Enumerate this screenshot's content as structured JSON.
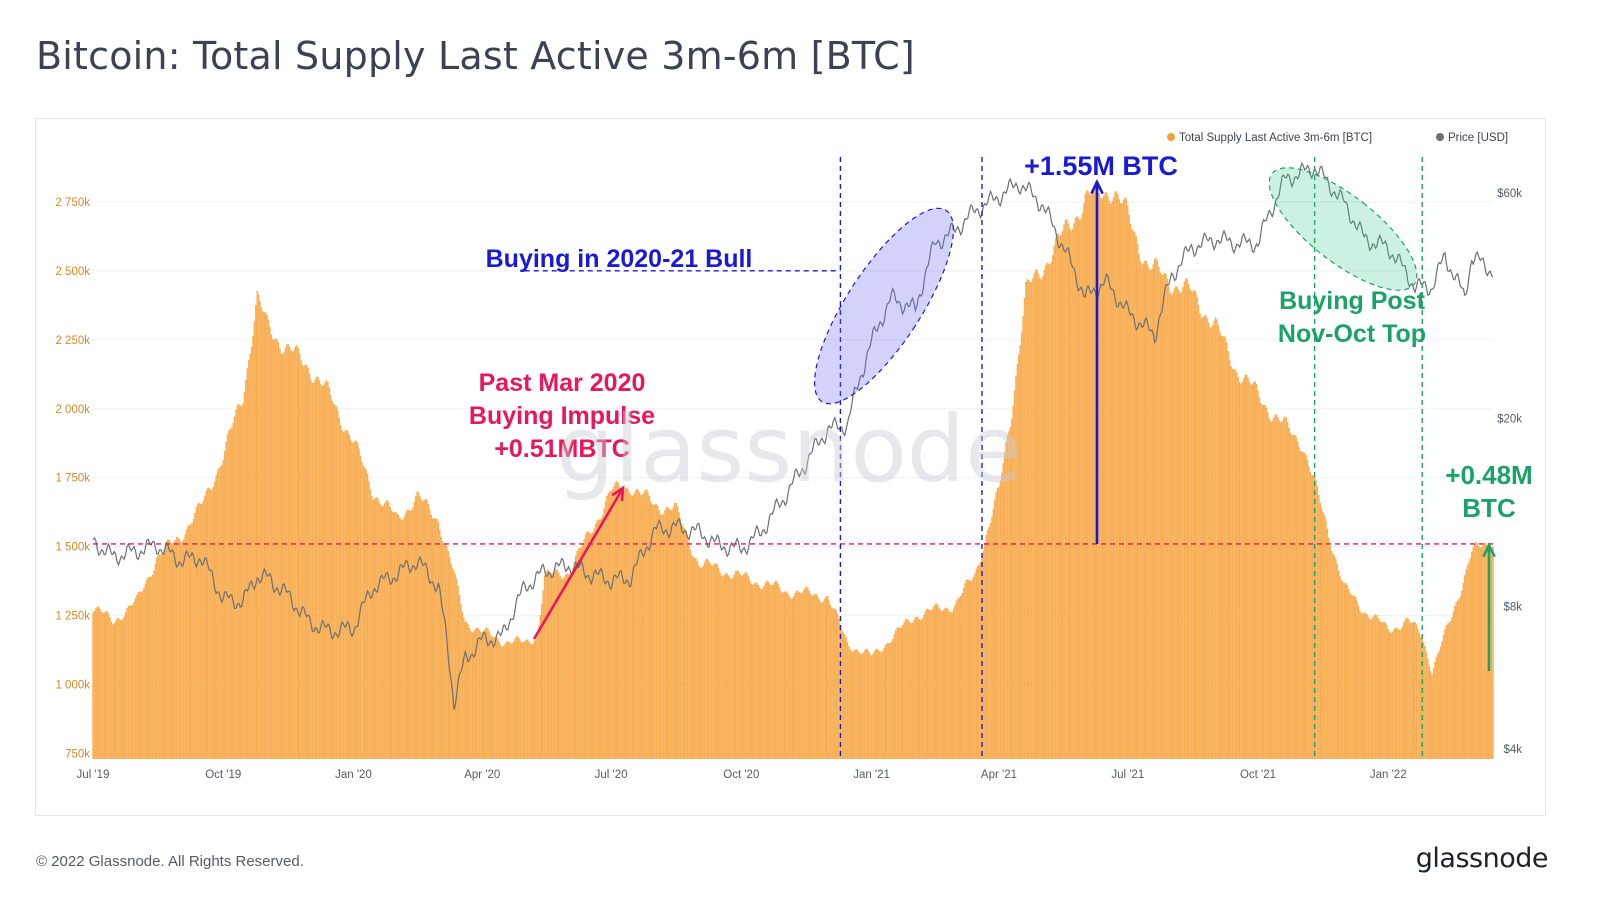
{
  "title": "Bitcoin: Total Supply Last Active 3m-6m [BTC]",
  "footer": {
    "copyright": "© 2022 Glassnode. All Rights Reserved.",
    "logo": "glassnode"
  },
  "watermark": "glassnode",
  "chart_data": {
    "type": "bar",
    "title": "Bitcoin: Total Supply Last Active 3m-6m [BTC]",
    "x_range": [
      "2019-07-01",
      "2022-03-16"
    ],
    "x_ticks": [
      "Jul '19",
      "Oct '19",
      "Jan '20",
      "Apr '20",
      "Jul '20",
      "Oct '20",
      "Jan '21",
      "Apr '21",
      "Jul '21",
      "Oct '21",
      "Jan '22"
    ],
    "y_left": {
      "ticks": [
        "750k",
        "1 000k",
        "1 250k",
        "1 500k",
        "1 750k",
        "2 000k",
        "2 250k",
        "2 500k",
        "2 750k"
      ],
      "ylim": [
        730000,
        2960000
      ],
      "color": "#f7a035"
    },
    "y_right": {
      "ticks": [
        "$4k",
        "$8k",
        "$20k",
        "$60k"
      ],
      "scale": "log",
      "color": "#555b66"
    },
    "legend": {
      "position": "top-right",
      "items": [
        {
          "label": "Total Supply Last Active 3m-6m [BTC]",
          "color": "#f7a035"
        },
        {
          "label": "Price [USD]",
          "color": "#6b6f76"
        }
      ]
    },
    "series": [
      {
        "name": "Total Supply Last Active 3m-6m [BTC]",
        "type": "bar",
        "axis": "left",
        "color": "#f7a035",
        "points": [
          [
            "2019-07-01",
            1280000
          ],
          [
            "2019-07-15",
            1230000
          ],
          [
            "2019-08-01",
            1300000
          ],
          [
            "2019-08-15",
            1460000
          ],
          [
            "2019-09-01",
            1540000
          ],
          [
            "2019-09-15",
            1640000
          ],
          [
            "2019-10-01",
            1830000
          ],
          [
            "2019-10-15",
            2050000
          ],
          [
            "2019-10-25",
            2400000
          ],
          [
            "2019-11-01",
            2300000
          ],
          [
            "2019-11-15",
            2220000
          ],
          [
            "2019-12-01",
            2150000
          ],
          [
            "2019-12-15",
            2050000
          ],
          [
            "2020-01-01",
            1880000
          ],
          [
            "2020-01-15",
            1700000
          ],
          [
            "2020-02-01",
            1600000
          ],
          [
            "2020-02-15",
            1680000
          ],
          [
            "2020-03-01",
            1600000
          ],
          [
            "2020-03-12",
            1400000
          ],
          [
            "2020-03-20",
            1230000
          ],
          [
            "2020-04-01",
            1190000
          ],
          [
            "2020-04-15",
            1160000
          ],
          [
            "2020-05-01",
            1150000
          ],
          [
            "2020-05-10",
            1180000
          ],
          [
            "2020-05-15",
            1390000
          ],
          [
            "2020-06-01",
            1410000
          ],
          [
            "2020-06-15",
            1540000
          ],
          [
            "2020-07-01",
            1700000
          ],
          [
            "2020-07-15",
            1720000
          ],
          [
            "2020-08-01",
            1650000
          ],
          [
            "2020-08-15",
            1640000
          ],
          [
            "2020-09-01",
            1440000
          ],
          [
            "2020-09-15",
            1420000
          ],
          [
            "2020-10-01",
            1390000
          ],
          [
            "2020-10-15",
            1370000
          ],
          [
            "2020-11-01",
            1340000
          ],
          [
            "2020-11-15",
            1330000
          ],
          [
            "2020-12-01",
            1320000
          ],
          [
            "2020-12-15",
            1150000
          ],
          [
            "2021-01-01",
            1100000
          ],
          [
            "2021-01-15",
            1170000
          ],
          [
            "2021-02-01",
            1250000
          ],
          [
            "2021-02-15",
            1270000
          ],
          [
            "2021-03-01",
            1290000
          ],
          [
            "2021-03-15",
            1400000
          ],
          [
            "2021-04-01",
            1700000
          ],
          [
            "2021-04-10",
            2000000
          ],
          [
            "2021-04-20",
            2420000
          ],
          [
            "2021-05-01",
            2510000
          ],
          [
            "2021-05-15",
            2620000
          ],
          [
            "2021-06-01",
            2760000
          ],
          [
            "2021-06-20",
            2800000
          ],
          [
            "2021-07-01",
            2700000
          ],
          [
            "2021-07-15",
            2520000
          ],
          [
            "2021-08-01",
            2460000
          ],
          [
            "2021-08-15",
            2420000
          ],
          [
            "2021-09-01",
            2300000
          ],
          [
            "2021-09-15",
            2150000
          ],
          [
            "2021-10-01",
            2050000
          ],
          [
            "2021-10-15",
            1960000
          ],
          [
            "2021-11-01",
            1880000
          ],
          [
            "2021-11-15",
            1640000
          ],
          [
            "2021-12-01",
            1350000
          ],
          [
            "2021-12-15",
            1270000
          ],
          [
            "2022-01-01",
            1200000
          ],
          [
            "2022-01-15",
            1230000
          ],
          [
            "2022-01-25",
            1180000
          ],
          [
            "2022-02-01",
            1050000
          ],
          [
            "2022-02-15",
            1250000
          ],
          [
            "2022-03-01",
            1480000
          ],
          [
            "2022-03-16",
            1520000
          ]
        ]
      },
      {
        "name": "Price [USD]",
        "type": "line",
        "axis": "right",
        "color": "#6b6f76",
        "points": [
          [
            "2019-07-01",
            11000
          ],
          [
            "2019-07-15",
            10200
          ],
          [
            "2019-08-01",
            10500
          ],
          [
            "2019-08-15",
            10800
          ],
          [
            "2019-09-01",
            10000
          ],
          [
            "2019-09-15",
            10200
          ],
          [
            "2019-10-01",
            8300
          ],
          [
            "2019-10-15",
            8200
          ],
          [
            "2019-10-25",
            9300
          ],
          [
            "2019-11-01",
            9200
          ],
          [
            "2019-11-15",
            8500
          ],
          [
            "2019-12-01",
            7400
          ],
          [
            "2019-12-15",
            7100
          ],
          [
            "2020-01-01",
            7200
          ],
          [
            "2020-01-15",
            8800
          ],
          [
            "2020-02-01",
            9400
          ],
          [
            "2020-02-15",
            10000
          ],
          [
            "2020-03-01",
            8800
          ],
          [
            "2020-03-12",
            5000
          ],
          [
            "2020-03-20",
            6200
          ],
          [
            "2020-04-01",
            6800
          ],
          [
            "2020-04-15",
            6900
          ],
          [
            "2020-05-01",
            8800
          ],
          [
            "2020-05-15",
            9500
          ],
          [
            "2020-06-01",
            9800
          ],
          [
            "2020-06-15",
            9400
          ],
          [
            "2020-07-01",
            9100
          ],
          [
            "2020-07-15",
            9200
          ],
          [
            "2020-08-01",
            11600
          ],
          [
            "2020-08-15",
            11800
          ],
          [
            "2020-09-01",
            11500
          ],
          [
            "2020-09-15",
            10800
          ],
          [
            "2020-10-01",
            10600
          ],
          [
            "2020-10-15",
            11500
          ],
          [
            "2020-11-01",
            13700
          ],
          [
            "2020-11-15",
            16000
          ],
          [
            "2020-12-01",
            19000
          ],
          [
            "2020-12-15",
            19400
          ],
          [
            "2021-01-01",
            29000
          ],
          [
            "2021-01-15",
            36000
          ],
          [
            "2021-02-01",
            34000
          ],
          [
            "2021-02-15",
            47000
          ],
          [
            "2021-03-01",
            50000
          ],
          [
            "2021-03-15",
            55000
          ],
          [
            "2021-04-01",
            59000
          ],
          [
            "2021-04-15",
            63000
          ],
          [
            "2021-05-01",
            57000
          ],
          [
            "2021-05-15",
            47000
          ],
          [
            "2021-06-01",
            36000
          ],
          [
            "2021-06-15",
            39000
          ],
          [
            "2021-07-01",
            33500
          ],
          [
            "2021-07-20",
            30000
          ],
          [
            "2021-08-01",
            40000
          ],
          [
            "2021-08-15",
            46000
          ],
          [
            "2021-09-01",
            48000
          ],
          [
            "2021-09-15",
            47000
          ],
          [
            "2021-10-01",
            47000
          ],
          [
            "2021-10-20",
            64000
          ],
          [
            "2021-11-10",
            68000
          ],
          [
            "2021-12-01",
            57000
          ],
          [
            "2021-12-15",
            48000
          ],
          [
            "2022-01-01",
            46000
          ],
          [
            "2022-01-20",
            38000
          ],
          [
            "2022-02-01",
            38000
          ],
          [
            "2022-02-10",
            44000
          ],
          [
            "2022-02-24",
            36000
          ],
          [
            "2022-03-01",
            44000
          ],
          [
            "2022-03-16",
            41000
          ]
        ]
      }
    ],
    "reference_lines": [
      {
        "orientation": "horizontal",
        "value": 1510000,
        "color": "#e8175d",
        "style": "dashed"
      },
      {
        "orientation": "horizontal",
        "value": 2500000,
        "color": "#1a1ad6",
        "style": "dashed",
        "x_from": "2020-05-01",
        "x_to": "2020-12-10"
      },
      {
        "orientation": "vertical",
        "date": "2020-12-10",
        "color": "#1a1ad6",
        "style": "dashed"
      },
      {
        "orientation": "vertical",
        "date": "2021-03-20",
        "color": "#1a1ad6",
        "style": "dashed"
      },
      {
        "orientation": "vertical",
        "date": "2021-11-10",
        "color": "#1ba268",
        "style": "dashed"
      },
      {
        "orientation": "vertical",
        "date": "2022-01-25",
        "color": "#1ba268",
        "style": "dashed"
      }
    ],
    "annotations": [
      {
        "text_lines": [
          "Buying in 2020-21 Bull"
        ],
        "color": "#1a1ad6"
      },
      {
        "text_lines": [
          "+1.55M BTC"
        ],
        "color": "#1a1ad6"
      },
      {
        "text_lines": [
          "Past Mar 2020",
          "Buying Impulse",
          "+0.51MBTC"
        ],
        "color": "#e8175d"
      },
      {
        "text_lines": [
          "Buying Post",
          "Nov-Oct Top"
        ],
        "color": "#1ba268"
      },
      {
        "text_lines": [
          "+0.48M",
          "BTC"
        ],
        "color": "#1ba268"
      }
    ]
  }
}
